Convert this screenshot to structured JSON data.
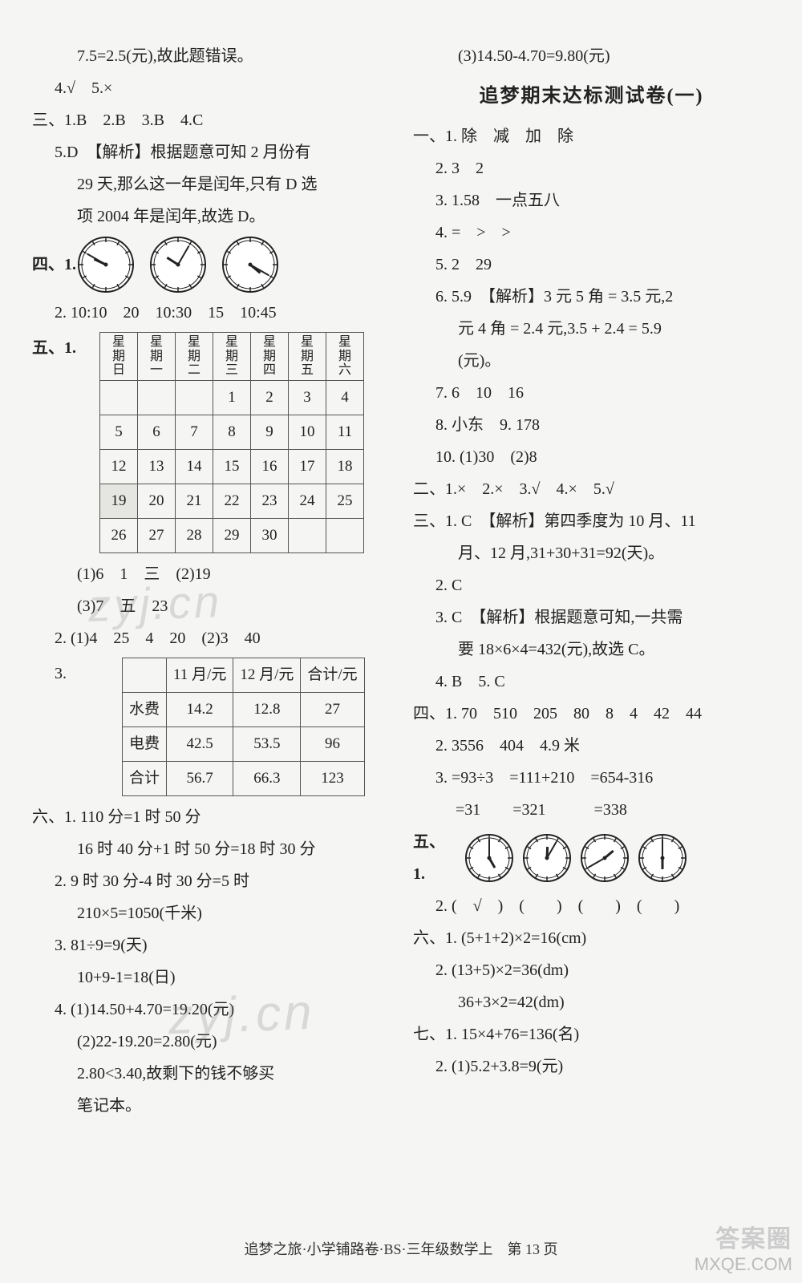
{
  "left": {
    "lines_top": [
      "7.5=2.5(元),故此题错误。",
      "4.√　5.×"
    ],
    "sec3": "三、1.B　2.B　3.B　4.C",
    "sec3_5": "5.D　【解析】根据题意可知 2 月份有",
    "sec3_5b": "29 天,那么这一年是闰年,只有 D 选",
    "sec3_5c": "项 2004 年是闰年,故选 D。",
    "sec4_label": "四、1.",
    "clocks4": [
      {
        "hour": 9,
        "min": 50
      },
      {
        "hour": 10,
        "min": 5
      },
      {
        "hour": 4,
        "min": 20
      }
    ],
    "sec4_2": "2. 10:10　20　10:30　15　10:45",
    "sec5_label": "五、1.",
    "calendar": {
      "headers": [
        "星期日",
        "星期一",
        "星期二",
        "星期三",
        "星期四",
        "星期五",
        "星期六"
      ],
      "rows": [
        [
          "",
          "",
          "",
          "1",
          "2",
          "3",
          "4"
        ],
        [
          "5",
          "6",
          "7",
          "8",
          "9",
          "10",
          "11"
        ],
        [
          "12",
          "13",
          "14",
          "15",
          "16",
          "17",
          "18"
        ],
        [
          "19",
          "20",
          "21",
          "22",
          "23",
          "24",
          "25"
        ],
        [
          "26",
          "27",
          "28",
          "29",
          "30",
          "",
          ""
        ]
      ],
      "shaded_cell": {
        "row": 3,
        "col": 0
      }
    },
    "sec5_sub": [
      "(1)6　1　三　(2)19",
      "(3)7　五　23"
    ],
    "sec5_2": "2. (1)4　25　4　20　(2)3　40",
    "sec5_3_label": "3.",
    "fees": {
      "headers": [
        "",
        "11 月/元",
        "12 月/元",
        "合计/元"
      ],
      "rows": [
        [
          "水费",
          "14.2",
          "12.8",
          "27"
        ],
        [
          "电费",
          "42.5",
          "53.5",
          "96"
        ],
        [
          "合计",
          "56.7",
          "66.3",
          "123"
        ]
      ]
    },
    "sec6": [
      "六、1. 110 分=1 时 50 分",
      "16 时 40 分+1 时 50 分=18 时 30 分",
      "2. 9 时 30 分-4 时 30 分=5 时",
      "210×5=1050(千米)",
      "3. 81÷9=9(天)",
      "10+9-1=18(日)",
      "4. (1)14.50+4.70=19.20(元)",
      "(2)22-19.20=2.80(元)",
      "2.80<3.40,故剩下的钱不够买",
      "笔记本。"
    ]
  },
  "right": {
    "top": "(3)14.50-4.70=9.80(元)",
    "heading": "追梦期末达标测试卷(一)",
    "sec1": [
      "一、1. 除　减　加　除",
      "2. 3　2",
      "3. 1.58　一点五八",
      "4. =　>　>",
      "5. 2　29",
      "6. 5.9　【解析】3 元 5 角 = 3.5 元,2",
      "元 4 角 = 2.4 元,3.5 + 2.4 = 5.9",
      "(元)。",
      "7. 6　10　16",
      "8. 小东　9. 178",
      "10. (1)30　(2)8"
    ],
    "sec2": "二、1.×　2.×　3.√　4.×　5.√",
    "sec3": [
      "三、1. C　【解析】第四季度为 10 月、11",
      "月、12 月,31+30+31=92(天)。",
      "2. C",
      "3. C　【解析】根据题意可知,一共需",
      "要 18×6×4=432(元),故选 C。",
      "4. B　5. C"
    ],
    "sec4": [
      "四、1. 70　510　205　80　8　4　42　44",
      "2. 3556　404　4.9 米",
      "3. =93÷3　=111+210　=654-316",
      "　 =31　　=321　　　=338"
    ],
    "sec5_label": "五、1.",
    "clocks5": [
      {
        "hour": 5,
        "min": 0
      },
      {
        "hour": 12,
        "min": 5
      },
      {
        "hour": 1,
        "min": 40
      },
      {
        "hour": 6,
        "min": 0
      }
    ],
    "sec5_2": "2. (　√　)　(　　)　(　　)　(　　)",
    "sec6": [
      "六、1. (5+1+2)×2=16(cm)",
      "2. (13+5)×2=36(dm)",
      "36+3×2=42(dm)"
    ],
    "sec7": [
      "七、1. 15×4+76=136(名)",
      "2. (1)5.2+3.8=9(元)"
    ]
  },
  "footer": "追梦之旅·小学铺路卷·BS·三年级数学上　第 13 页",
  "watermark": "zyj.cn",
  "corner1": "答案圈",
  "corner2": "MXQE.COM"
}
